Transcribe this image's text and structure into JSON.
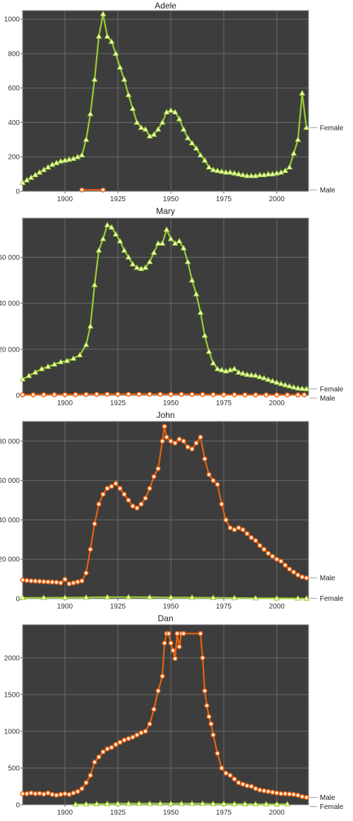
{
  "colors": {
    "female": "#9ACD32",
    "male": "#E8620F",
    "plot_bg": "#3d3d3d",
    "grid": "#6a6a6a"
  },
  "chart_data": [
    {
      "type": "line",
      "title": "Adele",
      "xticks": [
        1900,
        1925,
        1950,
        1975,
        2000
      ],
      "yticks": [
        0,
        200,
        400,
        600,
        800,
        1000
      ],
      "ytick_labels": [
        "0",
        "200",
        "400",
        "600",
        "800",
        "1000"
      ],
      "xlim": [
        1880,
        2015
      ],
      "ylim": [
        0,
        1050
      ],
      "series": [
        {
          "name": "Female",
          "marker": "triangle",
          "x": [
            1880,
            1882,
            1884,
            1886,
            1888,
            1890,
            1892,
            1894,
            1896,
            1898,
            1900,
            1902,
            1904,
            1906,
            1908,
            1910,
            1912,
            1914,
            1916,
            1918,
            1920,
            1922,
            1924,
            1926,
            1928,
            1930,
            1932,
            1934,
            1936,
            1938,
            1940,
            1942,
            1944,
            1946,
            1948,
            1950,
            1952,
            1954,
            1956,
            1958,
            1960,
            1962,
            1964,
            1966,
            1968,
            1970,
            1972,
            1974,
            1976,
            1978,
            1980,
            1982,
            1984,
            1986,
            1988,
            1990,
            1992,
            1994,
            1996,
            1998,
            2000,
            2002,
            2004,
            2006,
            2008,
            2010,
            2012,
            2014
          ],
          "y": [
            50,
            65,
            80,
            95,
            110,
            125,
            140,
            155,
            165,
            175,
            180,
            185,
            190,
            200,
            210,
            300,
            450,
            650,
            900,
            1030,
            900,
            870,
            800,
            720,
            650,
            560,
            480,
            400,
            370,
            360,
            320,
            330,
            360,
            400,
            460,
            470,
            460,
            420,
            360,
            310,
            280,
            250,
            210,
            180,
            140,
            125,
            120,
            115,
            110,
            110,
            105,
            100,
            95,
            90,
            90,
            90,
            95,
            95,
            100,
            100,
            105,
            110,
            120,
            140,
            220,
            300,
            570,
            370
          ]
        },
        {
          "name": "Male",
          "marker": "circle",
          "x": [
            1908,
            1918
          ],
          "y": [
            8,
            8
          ]
        }
      ]
    },
    {
      "type": "line",
      "title": "Mary",
      "xticks": [
        1900,
        1925,
        1950,
        1975,
        2000
      ],
      "yticks": [
        0,
        20000,
        40000,
        60000
      ],
      "ytick_labels": [
        "0",
        "20 000",
        "40 000",
        "60 000"
      ],
      "xlim": [
        1880,
        2015
      ],
      "ylim": [
        0,
        77000
      ],
      "series": [
        {
          "name": "Female",
          "marker": "triangle",
          "x": [
            1880,
            1883,
            1886,
            1889,
            1892,
            1895,
            1898,
            1901,
            1904,
            1907,
            1910,
            1912,
            1914,
            1916,
            1918,
            1920,
            1922,
            1924,
            1926,
            1928,
            1930,
            1932,
            1934,
            1936,
            1938,
            1940,
            1942,
            1944,
            1946,
            1948,
            1950,
            1952,
            1954,
            1956,
            1958,
            1960,
            1962,
            1964,
            1966,
            1968,
            1970,
            1972,
            1974,
            1976,
            1978,
            1980,
            1982,
            1984,
            1986,
            1988,
            1990,
            1992,
            1994,
            1996,
            1998,
            2000,
            2002,
            2004,
            2006,
            2008,
            2010,
            2012,
            2014
          ],
          "y": [
            7000,
            8500,
            10000,
            11500,
            12500,
            13500,
            14500,
            15000,
            16000,
            17500,
            22000,
            30000,
            48000,
            63000,
            68000,
            74000,
            73000,
            70000,
            67000,
            63000,
            60000,
            57000,
            55500,
            55000,
            55500,
            58000,
            62000,
            66000,
            66000,
            72000,
            68000,
            66000,
            67000,
            64000,
            58000,
            50000,
            44000,
            36000,
            26000,
            19000,
            14000,
            11500,
            11000,
            10500,
            11000,
            11500,
            10000,
            9500,
            9000,
            8800,
            8600,
            8000,
            7500,
            6800,
            6200,
            5600,
            5000,
            4500,
            4000,
            3500,
            3100,
            2900,
            2800
          ]
        },
        {
          "name": "Male",
          "marker": "circle",
          "x": [
            1880,
            1885,
            1890,
            1895,
            1900,
            1905,
            1910,
            1915,
            1920,
            1925,
            1930,
            1935,
            1940,
            1945,
            1950,
            1955,
            1960,
            1965,
            1970,
            1975,
            1980,
            1985,
            1990,
            1995,
            2000,
            2005,
            2010,
            2013
          ],
          "y": [
            250,
            250,
            280,
            300,
            320,
            350,
            400,
            450,
            500,
            500,
            500,
            480,
            480,
            470,
            460,
            450,
            420,
            380,
            320,
            280,
            260,
            240,
            220,
            200,
            200,
            200,
            220,
            250
          ]
        }
      ]
    },
    {
      "type": "line",
      "title": "John",
      "xticks": [
        1900,
        1925,
        1950,
        1975,
        2000
      ],
      "yticks": [
        0,
        20000,
        40000,
        60000,
        80000
      ],
      "ytick_labels": [
        "0",
        "20 000",
        "40 000",
        "60 000",
        "80 000"
      ],
      "xlim": [
        1880,
        2015
      ],
      "ylim": [
        0,
        90000
      ],
      "series": [
        {
          "name": "Male",
          "marker": "circle",
          "x": [
            1880,
            1882,
            1884,
            1886,
            1888,
            1890,
            1892,
            1894,
            1896,
            1898,
            1900,
            1902,
            1904,
            1906,
            1908,
            1910,
            1912,
            1914,
            1916,
            1918,
            1920,
            1922,
            1924,
            1926,
            1928,
            1930,
            1932,
            1934,
            1936,
            1938,
            1940,
            1942,
            1944,
            1946,
            1947,
            1948,
            1950,
            1952,
            1954,
            1956,
            1958,
            1960,
            1962,
            1964,
            1966,
            1968,
            1970,
            1972,
            1974,
            1976,
            1978,
            1980,
            1982,
            1984,
            1986,
            1988,
            1990,
            1992,
            1994,
            1996,
            1998,
            2000,
            2002,
            2004,
            2006,
            2008,
            2010,
            2012,
            2014
          ],
          "y": [
            9500,
            9200,
            9000,
            8900,
            8800,
            8600,
            8500,
            8400,
            8300,
            8000,
            9800,
            7500,
            8000,
            8500,
            9000,
            13000,
            25000,
            38000,
            48000,
            53000,
            56000,
            57000,
            58500,
            56000,
            53000,
            50000,
            47000,
            46000,
            48000,
            51000,
            56000,
            62000,
            66000,
            80000,
            87500,
            82000,
            80000,
            79000,
            81000,
            80000,
            77000,
            76000,
            79000,
            82000,
            71000,
            63000,
            60000,
            58000,
            48000,
            40000,
            36000,
            35000,
            36000,
            35000,
            33000,
            31000,
            29500,
            27000,
            25000,
            23000,
            21500,
            20000,
            19000,
            17000,
            15000,
            13500,
            12000,
            11000,
            10500
          ]
        },
        {
          "name": "Female",
          "marker": "triangle",
          "x": [
            1880,
            1890,
            1900,
            1910,
            1920,
            1930,
            1940,
            1950,
            1960,
            1970,
            1980,
            1990,
            2000,
            2010,
            2014
          ],
          "y": [
            400,
            450,
            500,
            600,
            750,
            800,
            700,
            600,
            550,
            450,
            350,
            250,
            200,
            150,
            120
          ]
        }
      ]
    },
    {
      "type": "line",
      "title": "Dan",
      "xticks": [
        1900,
        1925,
        1950,
        1975,
        2000
      ],
      "yticks": [
        0,
        500,
        1000,
        1500,
        2000
      ],
      "ytick_labels": [
        "0",
        "500",
        "1000",
        "1500",
        "2000"
      ],
      "xlim": [
        1880,
        2015
      ],
      "ylim": [
        0,
        2450
      ],
      "series": [
        {
          "name": "Male",
          "marker": "circle",
          "x": [
            1880,
            1882,
            1884,
            1886,
            1888,
            1890,
            1892,
            1894,
            1896,
            1898,
            1900,
            1902,
            1904,
            1906,
            1908,
            1910,
            1912,
            1914,
            1916,
            1918,
            1920,
            1922,
            1924,
            1926,
            1928,
            1930,
            1932,
            1934,
            1936,
            1938,
            1940,
            1942,
            1944,
            1946,
            1947,
            1948,
            1949,
            1950,
            1951,
            1952,
            1953,
            1954,
            1955,
            1956,
            1964,
            1965,
            1966,
            1967,
            1968,
            1969,
            1970,
            1972,
            1974,
            1976,
            1978,
            1980,
            1982,
            1984,
            1986,
            1988,
            1990,
            1992,
            1994,
            1996,
            1998,
            2000,
            2002,
            2004,
            2006,
            2008,
            2010,
            2012,
            2014
          ],
          "y": [
            150,
            150,
            160,
            150,
            155,
            145,
            160,
            140,
            130,
            140,
            150,
            140,
            160,
            180,
            220,
            300,
            400,
            580,
            650,
            720,
            760,
            780,
            820,
            850,
            880,
            900,
            920,
            950,
            980,
            1000,
            1100,
            1300,
            1550,
            1750,
            2200,
            2330,
            2330,
            2200,
            2100,
            1990,
            2330,
            2150,
            2330,
            2330,
            2330,
            2000,
            1550,
            1350,
            1200,
            1100,
            950,
            700,
            500,
            430,
            400,
            350,
            300,
            280,
            260,
            250,
            220,
            200,
            190,
            180,
            170,
            160,
            150,
            150,
            145,
            140,
            130,
            110,
            100
          ]
        },
        {
          "name": "Female",
          "marker": "triangle",
          "x": [
            1905,
            1910,
            1915,
            1920,
            1925,
            1930,
            1935,
            1940,
            1945,
            1950,
            1955,
            1960,
            1965,
            1970,
            1975,
            1980,
            1985,
            1990,
            1995,
            2000,
            2005
          ],
          "y": [
            5,
            8,
            10,
            12,
            15,
            15,
            15,
            15,
            15,
            15,
            15,
            15,
            15,
            12,
            12,
            10,
            10,
            8,
            8,
            8,
            8
          ]
        }
      ]
    }
  ]
}
